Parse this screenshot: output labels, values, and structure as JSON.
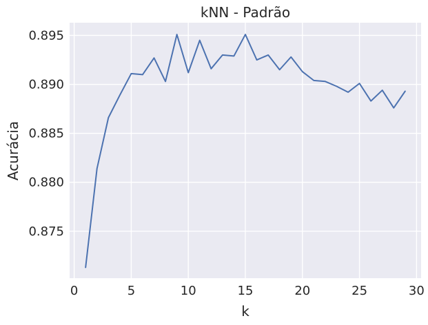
{
  "chart_data": {
    "type": "line",
    "title": "kNN - Padrão",
    "xlabel": "k",
    "ylabel": "Acurácia",
    "xlim": [
      -0.4,
      30.4
    ],
    "ylim": [
      0.8702,
      0.8963
    ],
    "xticks": [
      0,
      5,
      10,
      15,
      20,
      25,
      30
    ],
    "xtick_labels": [
      "0",
      "5",
      "10",
      "15",
      "20",
      "25",
      "30"
    ],
    "yticks": [
      0.875,
      0.88,
      0.885,
      0.89,
      0.895
    ],
    "ytick_labels": [
      "0.875",
      "0.880",
      "0.885",
      "0.890",
      "0.895"
    ],
    "grid": true,
    "background": "#eaeaf2",
    "series": [
      {
        "color": "#4c72b0",
        "x": [
          1,
          2,
          3,
          4,
          5,
          6,
          7,
          8,
          9,
          10,
          11,
          12,
          13,
          14,
          15,
          16,
          17,
          18,
          19,
          20,
          21,
          22,
          23,
          24,
          25,
          26,
          27,
          28,
          29
        ],
        "y": [
          0.8713,
          0.8814,
          0.8866,
          0.8889,
          0.8911,
          0.891,
          0.8927,
          0.8903,
          0.8951,
          0.8912,
          0.8945,
          0.8916,
          0.893,
          0.8929,
          0.8951,
          0.8925,
          0.893,
          0.8915,
          0.8928,
          0.8913,
          0.8904,
          0.8903,
          0.8898,
          0.8892,
          0.8901,
          0.8883,
          0.8894,
          0.8876,
          0.8893
        ]
      }
    ]
  }
}
